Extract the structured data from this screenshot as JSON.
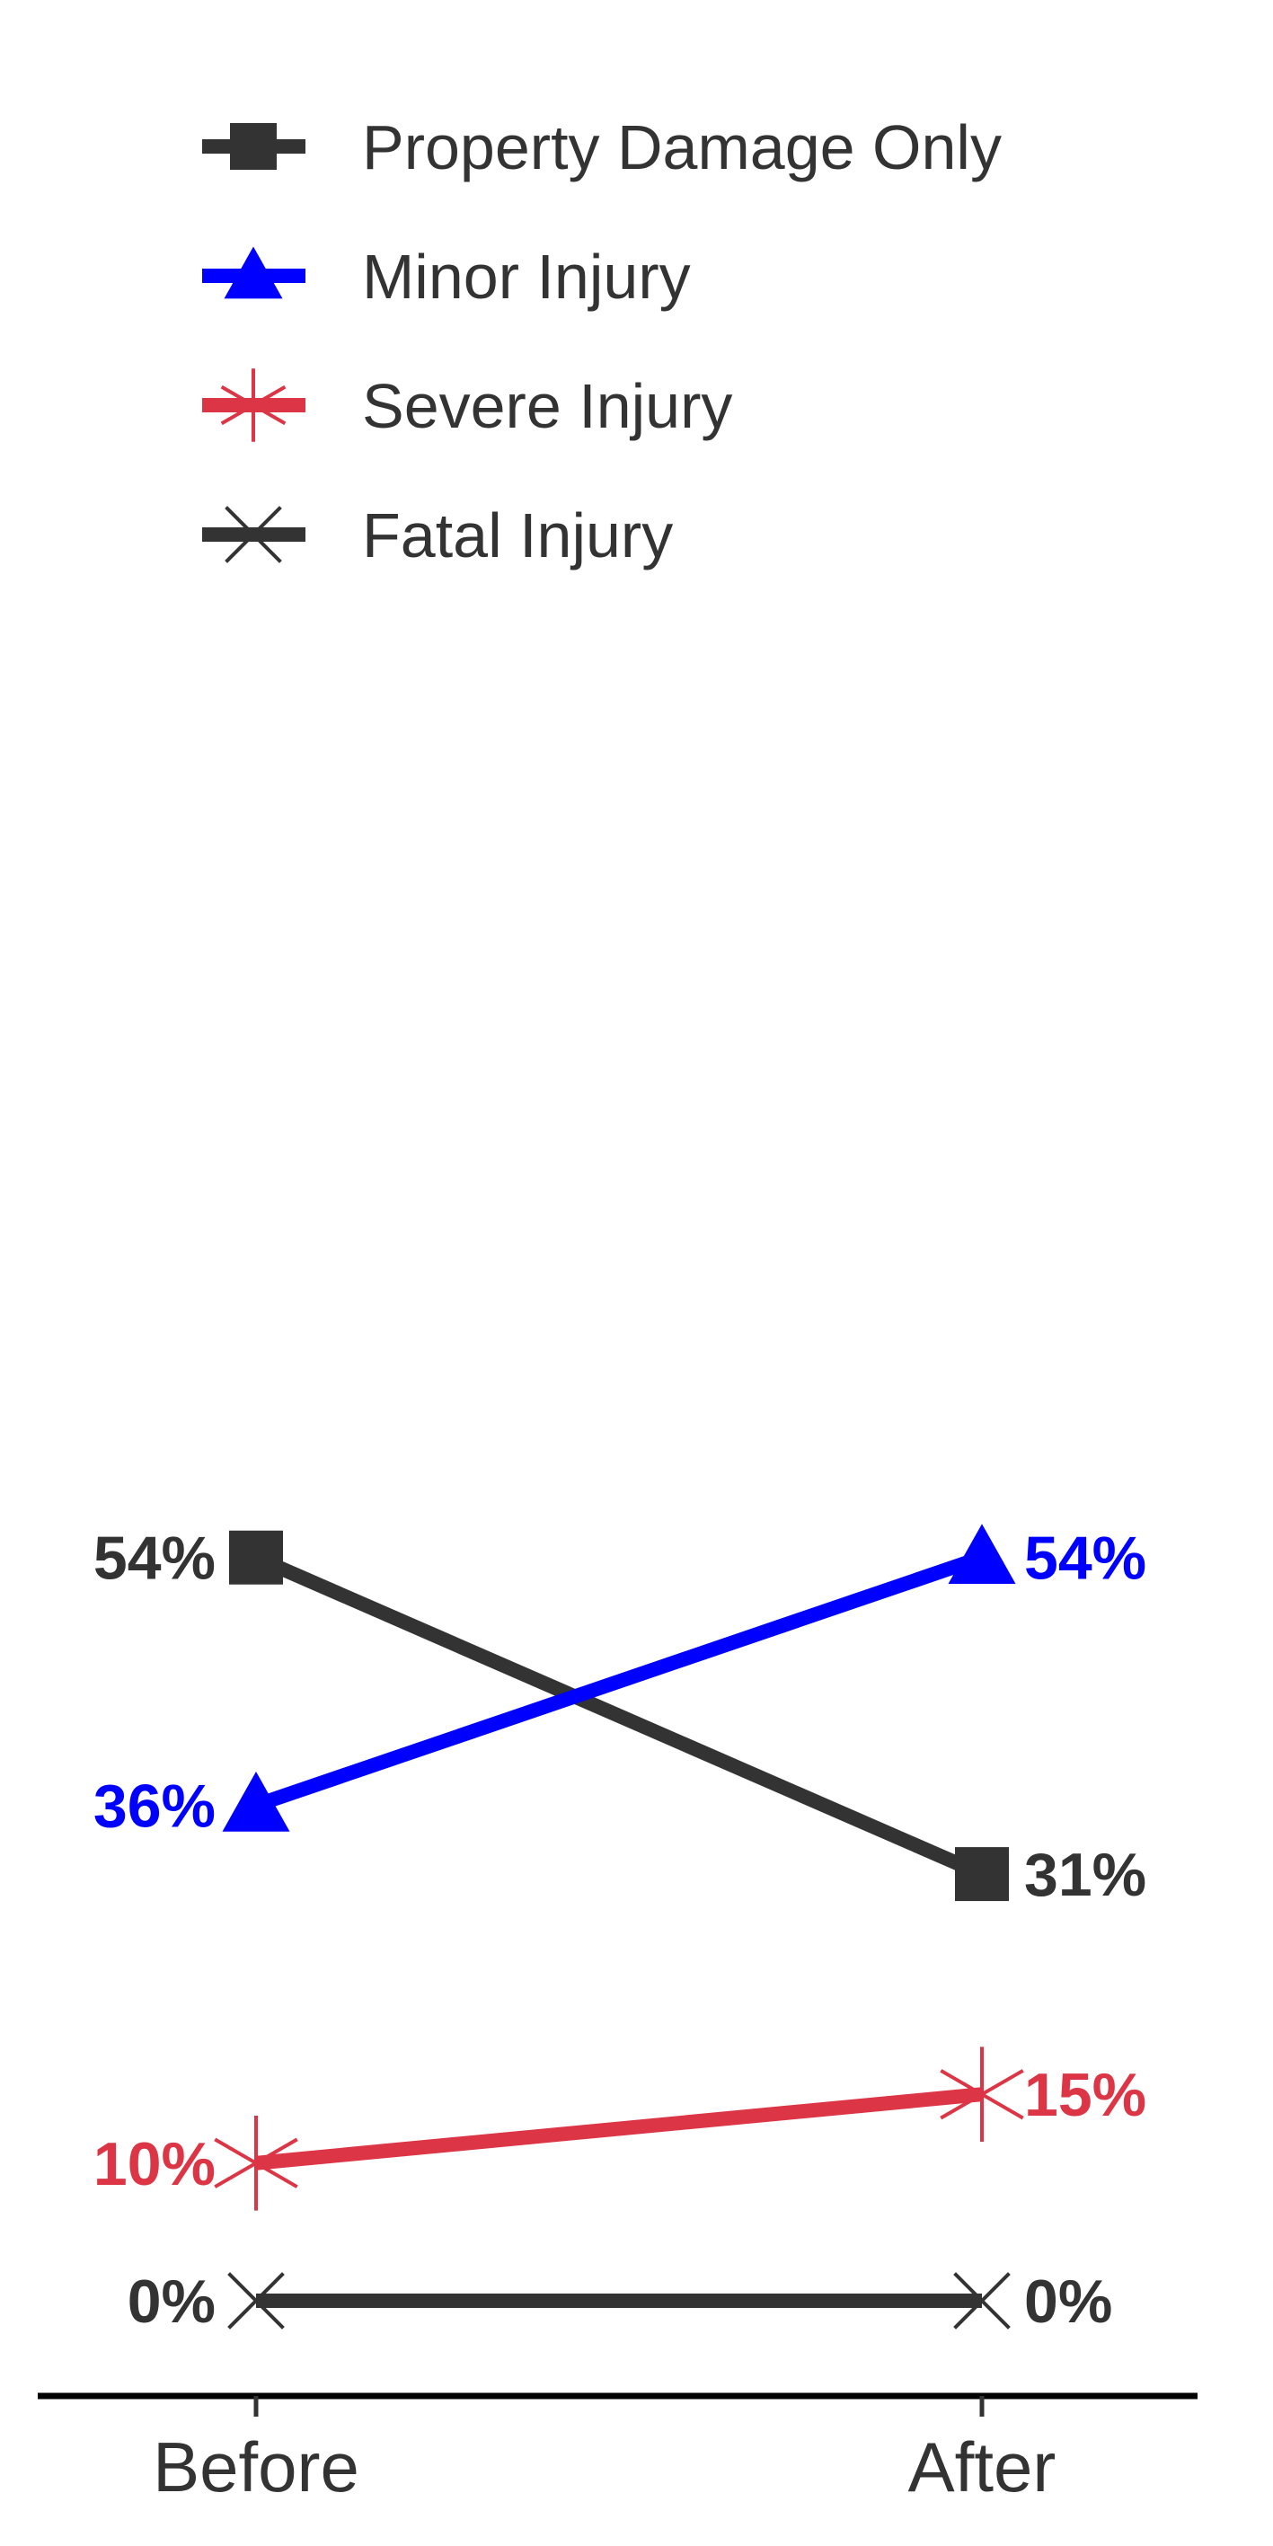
{
  "chart_data": {
    "type": "line",
    "categories": [
      "Before",
      "After"
    ],
    "series": [
      {
        "name": "Property Damage Only",
        "values": [
          54,
          31
        ],
        "labels": [
          "54%",
          "31%"
        ],
        "color": "#333333",
        "marker": "square"
      },
      {
        "name": "Minor Injury",
        "values": [
          36,
          54
        ],
        "labels": [
          "36%",
          "54%"
        ],
        "color": "#0000ff",
        "marker": "triangle"
      },
      {
        "name": "Severe Injury",
        "values": [
          10,
          15
        ],
        "labels": [
          "10%",
          "15%"
        ],
        "color": "#dc3545",
        "marker": "asterisk"
      },
      {
        "name": "Fatal Injury",
        "values": [
          0,
          0
        ],
        "labels": [
          "0%",
          "0%"
        ],
        "color": "#333333",
        "marker": "x"
      }
    ],
    "legend_position": "top",
    "grid": false
  }
}
